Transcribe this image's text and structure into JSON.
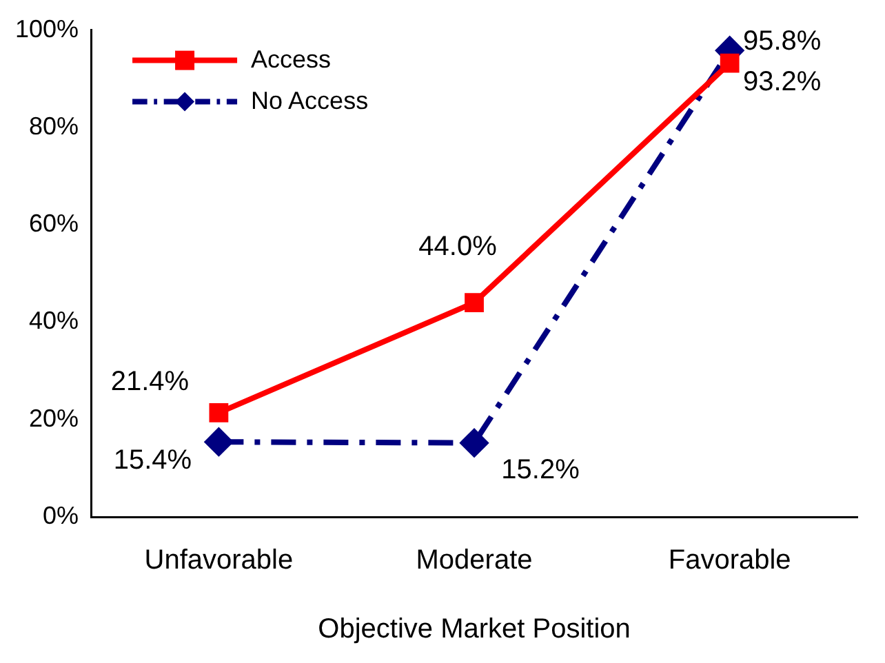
{
  "chart_data": {
    "type": "line",
    "xlabel": "Objective Market Position",
    "categories": [
      "Unfavorable",
      "Moderate",
      "Favorable"
    ],
    "series": [
      {
        "name": "Access",
        "color": "#ff0000",
        "values": [
          21.4,
          44.0,
          93.2
        ],
        "marker": "square",
        "line_style": "solid",
        "value_labels": [
          "21.4%",
          "44.0%",
          "93.2%"
        ]
      },
      {
        "name": "No Access",
        "color": "#000080",
        "values": [
          15.4,
          15.2,
          95.8
        ],
        "marker": "diamond",
        "line_style": "dashed",
        "value_labels": [
          "15.4%",
          "15.2%",
          "95.8%"
        ]
      }
    ],
    "ylim": [
      0,
      100
    ],
    "yticks": [
      {
        "value": 0,
        "label": "0%"
      },
      {
        "value": 20,
        "label": "20%"
      },
      {
        "value": 40,
        "label": "40%"
      },
      {
        "value": 60,
        "label": "60%"
      },
      {
        "value": 80,
        "label": "80%"
      },
      {
        "value": 100,
        "label": "100%"
      }
    ],
    "grid": false,
    "legend": "top left"
  }
}
